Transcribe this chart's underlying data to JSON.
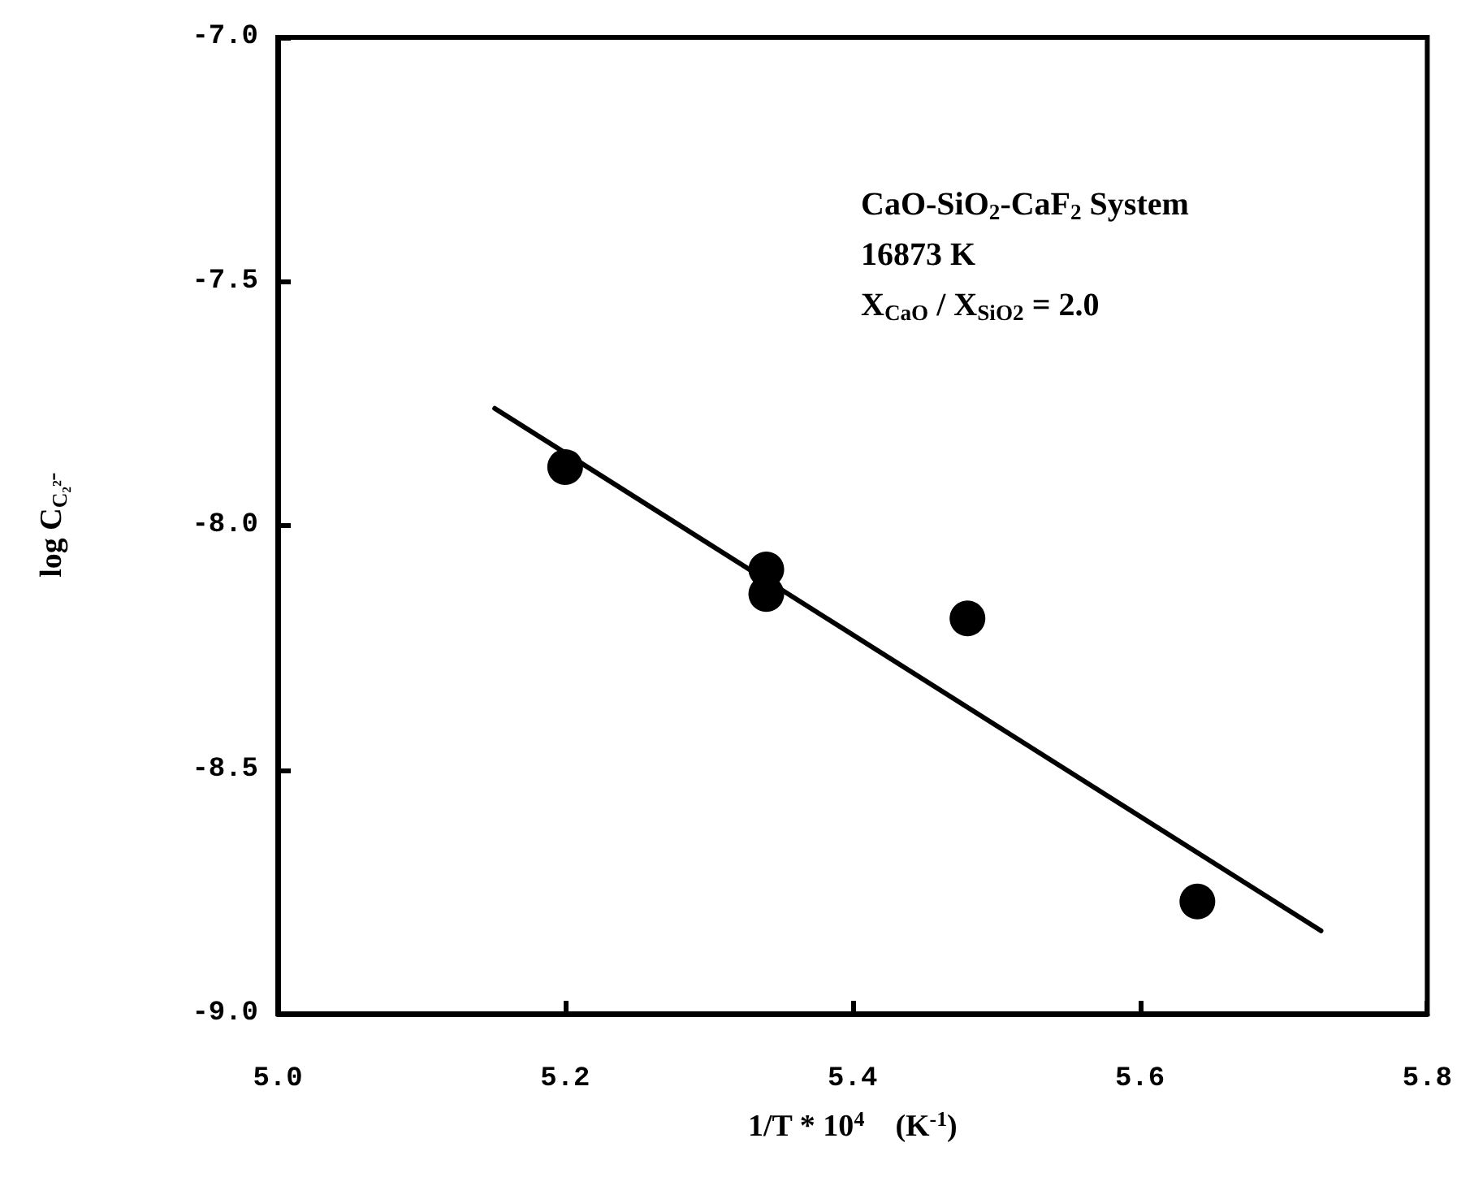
{
  "chart_data": {
    "type": "scatter",
    "xlabel": "1/T * 10$^{4}$    (K$^{-1}$)",
    "ylabel": "log C$_{C₂²⁻}$",
    "annotations": [
      "CaO-SiO$_{2}$-CaF$_{2}$ System",
      "16873 K",
      "X$_{CaO}$ / X$_{SiO2}$ = 2.0"
    ],
    "series": [
      {
        "color": "#000000",
        "marker": "circle",
        "x": [
          5.2,
          5.34,
          5.34,
          5.48,
          5.64
        ],
        "values": [
          -7.88,
          -8.09,
          -8.14,
          -8.19,
          -8.77
        ]
      },
      {
        "type": "line",
        "color": "#000000",
        "marker": "none",
        "line_style": "solid",
        "x": [
          5.151,
          5.726
        ],
        "values": [
          -7.76,
          -8.83
        ]
      }
    ],
    "xlim": [
      5.0,
      5.8
    ],
    "xticks": [
      {
        "value": 5.0,
        "label": "5.0"
      },
      5.2,
      5.4,
      5.6,
      5.8
    ],
    "ylim": [
      -9.0,
      -7.0
    ],
    "yticks": [
      {
        "value": -9.0,
        "label": "-9.0"
      },
      -8.5,
      {
        "value": -8.0,
        "label": "-8.0"
      },
      -7.5,
      {
        "value": -7.0,
        "label": "-7.0"
      }
    ],
    "grid": false
  }
}
